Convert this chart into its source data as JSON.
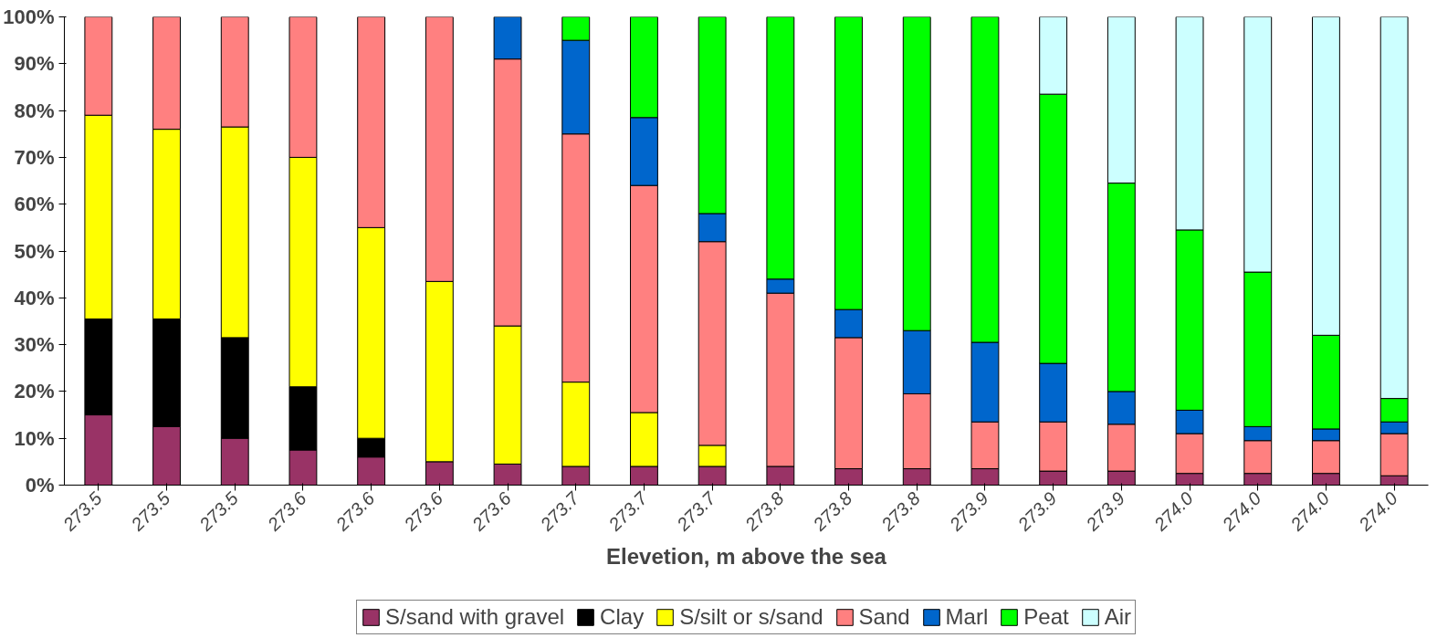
{
  "chart_data": {
    "type": "bar",
    "stacked": true,
    "xlabel": "Elevetion, m above the sea",
    "categories": [
      "273.5",
      "273.5",
      "273.5",
      "273.6",
      "273.6",
      "273.6",
      "273.6",
      "273.7",
      "273.7",
      "273.7",
      "273.8",
      "273.8",
      "273.8",
      "273.9",
      "273.9",
      "273.9",
      "274.0",
      "274.0",
      "274.0",
      "274.0"
    ],
    "series": [
      {
        "name": "S/sand with gravel",
        "color": "#993366",
        "values": [
          15,
          12.5,
          10,
          7.5,
          6,
          5,
          4.5,
          4,
          4,
          4,
          4,
          3.5,
          3.5,
          3.5,
          3,
          3,
          2.5,
          2.5,
          2.5,
          2
        ]
      },
      {
        "name": "Clay",
        "color": "#000000",
        "values": [
          20.5,
          23,
          21.5,
          13.5,
          4,
          0,
          0,
          0,
          0,
          0,
          0,
          0,
          0,
          0,
          0,
          0,
          0,
          0,
          0,
          0
        ]
      },
      {
        "name": "S/silt or s/sand",
        "color": "#ffff00",
        "values": [
          43.5,
          40.5,
          45,
          49,
          45,
          38.5,
          29.5,
          18,
          11.5,
          4.5,
          0,
          0,
          0,
          0,
          0,
          0,
          0,
          0,
          0,
          0
        ]
      },
      {
        "name": "Sand",
        "color": "#ff8080",
        "values": [
          21,
          24,
          23.5,
          30,
          45,
          56.5,
          57,
          53,
          48.5,
          43.5,
          37,
          28,
          16,
          10,
          10.5,
          10,
          8.5,
          7,
          7,
          9
        ]
      },
      {
        "name": "Marl",
        "color": "#0066cc",
        "values": [
          0,
          0,
          0,
          0,
          0,
          0,
          9,
          20,
          14.5,
          6,
          3,
          6,
          13.5,
          17,
          12.5,
          7,
          5,
          3,
          2.5,
          2.5
        ]
      },
      {
        "name": "Peat",
        "color": "#00ff00",
        "values": [
          0,
          0,
          0,
          0,
          0,
          0,
          0,
          5,
          21.5,
          42,
          56,
          62.5,
          67,
          69.5,
          57.5,
          44.5,
          38.5,
          33,
          20,
          5
        ]
      },
      {
        "name": "Air",
        "color": "#ccffff",
        "values": [
          0,
          0,
          0,
          0,
          0,
          0,
          0,
          0,
          0,
          0,
          0,
          0,
          0,
          0,
          16.5,
          35.5,
          45.5,
          54.5,
          68,
          81.5
        ]
      }
    ],
    "ylim": [
      0,
      100
    ],
    "yticks": [
      {
        "value": 0,
        "label": "0%"
      },
      {
        "value": 10,
        "label": "10%"
      },
      {
        "value": 20,
        "label": "20%"
      },
      {
        "value": 30,
        "label": "30%"
      },
      {
        "value": 40,
        "label": "40%"
      },
      {
        "value": 50,
        "label": "50%"
      },
      {
        "value": 60,
        "label": "60%"
      },
      {
        "value": 70,
        "label": "70%"
      },
      {
        "value": 80,
        "label": "80%"
      },
      {
        "value": 90,
        "label": "90%"
      },
      {
        "value": 100,
        "label": "100%"
      }
    ],
    "grid": false,
    "legend": "bottom"
  }
}
